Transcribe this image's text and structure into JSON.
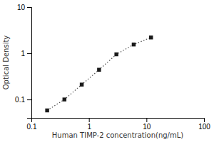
{
  "chart_data": {
    "type": "line",
    "xlabel": "Human TIMP-2 concentration(ng/mL)",
    "ylabel": "Optical Density",
    "x": [
      0.188,
      0.375,
      0.75,
      1.5,
      3.0,
      6.0,
      12.0
    ],
    "values": [
      0.058,
      0.1,
      0.21,
      0.44,
      0.95,
      1.55,
      2.2
    ],
    "color": "#1a1a1a",
    "marker": "square",
    "line_style": "dotted",
    "log": true,
    "grid": false,
    "xlim": [
      0.1,
      100
    ],
    "ylim": [
      0.04,
      10
    ],
    "xticks": [
      0.1,
      1,
      10,
      100
    ],
    "yticks": [
      0.1,
      1,
      10
    ]
  }
}
